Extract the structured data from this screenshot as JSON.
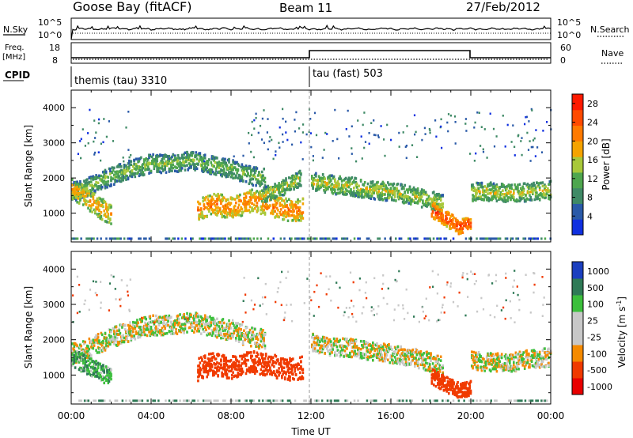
{
  "header": {
    "station": "Goose Bay (fitACF)",
    "beam": "Beam 11",
    "date": "27/Feb/2012"
  },
  "top_panel": {
    "nsky_label": "N.Sky",
    "nsearch_label": "N.Search",
    "left_ticks": [
      "10^5",
      "10^0"
    ],
    "right_ticks": [
      "10^5",
      "10^0"
    ]
  },
  "freq_panel": {
    "freq_label": [
      "Freq.",
      "[MHz]"
    ],
    "left_ticks": [
      "18",
      "8"
    ],
    "nave_label": "Nave",
    "right_ticks": [
      "60",
      "0"
    ],
    "cpid_label": "CPID"
  },
  "cpid": [
    {
      "label": "themis (tau) 3310",
      "start_hour": 0
    },
    {
      "label": "tau (fast) 503",
      "start_hour": 12
    }
  ],
  "colors": {
    "power": [
      "#1030e0",
      "#2a5aa8",
      "#3f8a66",
      "#4ea64e",
      "#a8c83a",
      "#f5a300",
      "#ff7a00",
      "#ff4a00",
      "#ff1a00"
    ],
    "velocity": [
      "#e80000",
      "#f03a00",
      "#f58a00",
      "#c8c8c8",
      "#c8c8c8",
      "#3cbf3c",
      "#2f7a56",
      "#1b3fbf"
    ],
    "accent_line": "#999999"
  },
  "chart_data": [
    {
      "type": "heatmap",
      "name": "power",
      "xlabel": "",
      "ylabel": "Slant Range [km]",
      "xlim": [
        0,
        24
      ],
      "ylim": [
        180,
        4500
      ],
      "yticks": [
        "1000",
        "2000",
        "3000",
        "4000"
      ],
      "colorbar": {
        "label": "Power [dB]",
        "ticks": [
          "4",
          "8",
          "12",
          "16",
          "20",
          "24",
          "28"
        ],
        "range": [
          0,
          30
        ]
      },
      "bands": [
        {
          "x": [
            0.0,
            0.5,
            1.0,
            2.0,
            3.0,
            4.0,
            5.0,
            6.0,
            7.0,
            8.0,
            9.0,
            9.7
          ],
          "y": [
            1600,
            1650,
            1800,
            2050,
            2250,
            2400,
            2400,
            2500,
            2350,
            2250,
            2050,
            2000
          ],
          "thick": 260,
          "value": 14
        },
        {
          "x": [
            0.0,
            0.5,
            1.0,
            1.5,
            2.0
          ],
          "y": [
            1700,
            1500,
            1300,
            1100,
            950
          ],
          "thick": 300,
          "value": 20
        },
        {
          "x": [
            6.3,
            7.0,
            8.0,
            9.0,
            10.0,
            11.0,
            11.6
          ],
          "y": [
            1100,
            1250,
            1150,
            1350,
            1200,
            1050,
            1100
          ],
          "thick": 320,
          "value": 22
        },
        {
          "x": [
            9.5,
            10.5,
            11.5
          ],
          "y": [
            1500,
            1700,
            2000
          ],
          "thick": 220,
          "value": 16
        },
        {
          "x": [
            12.0,
            13.0,
            14.0,
            15.0,
            16.0,
            17.0,
            18.0,
            18.6
          ],
          "y": [
            1900,
            1800,
            1750,
            1650,
            1600,
            1500,
            1350,
            1250
          ],
          "thick": 260,
          "value": 16
        },
        {
          "x": [
            18.0,
            18.8,
            19.4,
            20.0
          ],
          "y": [
            1100,
            800,
            600,
            700
          ],
          "thick": 220,
          "value": 26
        },
        {
          "x": [
            20.0,
            21.0,
            22.0,
            23.0,
            24.0
          ],
          "y": [
            1600,
            1600,
            1550,
            1600,
            1650
          ],
          "thick": 260,
          "value": 16
        }
      ]
    },
    {
      "type": "heatmap",
      "name": "velocity",
      "xlabel": "Time UT",
      "ylabel": "Slant Range [km]",
      "xlim": [
        0,
        24
      ],
      "ylim": [
        180,
        4500
      ],
      "xticks": [
        "00:00",
        "04:00",
        "08:00",
        "12:00",
        "16:00",
        "20:00",
        "00:00"
      ],
      "yticks": [
        "1000",
        "2000",
        "3000",
        "4000"
      ],
      "colorbar": {
        "label": "Velocity [m s",
        "label_exponent": "-1",
        "label_end": "]",
        "ticks": [
          "1000",
          "500",
          "100",
          "25",
          "-25",
          "-100",
          "-500",
          "-1000"
        ]
      },
      "bands": [
        {
          "x": [
            0.0,
            0.5,
            1.0,
            2.0,
            3.0,
            4.0,
            5.0,
            6.0,
            7.0,
            8.0,
            9.0,
            9.7
          ],
          "y": [
            1600,
            1650,
            1800,
            2050,
            2250,
            2400,
            2400,
            2500,
            2350,
            2250,
            2050,
            2000
          ],
          "thick": 280,
          "value": 0
        },
        {
          "x": [
            0.0,
            0.5,
            1.0,
            1.5,
            2.0
          ],
          "y": [
            1450,
            1350,
            1200,
            1050,
            950
          ],
          "thick": 260,
          "value": 80
        },
        {
          "x": [
            6.3,
            7.0,
            8.0,
            9.0,
            10.0,
            11.0,
            11.6
          ],
          "y": [
            1150,
            1300,
            1200,
            1350,
            1250,
            1150,
            1200
          ],
          "thick": 320,
          "value": -200
        },
        {
          "x": [
            12.0,
            13.0,
            14.0,
            15.0,
            16.0,
            17.0,
            18.0,
            18.6
          ],
          "y": [
            1900,
            1800,
            1750,
            1650,
            1600,
            1500,
            1350,
            1250
          ],
          "thick": 260,
          "value": 0
        },
        {
          "x": [
            18.0,
            18.8,
            19.4,
            20.0
          ],
          "y": [
            950,
            700,
            550,
            650
          ],
          "thick": 220,
          "value": -300
        },
        {
          "x": [
            20.0,
            21.0,
            22.0,
            23.0,
            24.0
          ],
          "y": [
            1400,
            1350,
            1350,
            1450,
            1500
          ],
          "thick": 260,
          "value": 0
        }
      ]
    }
  ]
}
